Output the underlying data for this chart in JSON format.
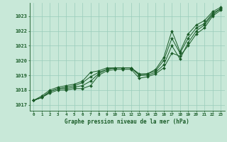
{
  "title": "Graphe pression niveau de la mer (hPa)",
  "xlabel_hours": [
    0,
    1,
    2,
    3,
    4,
    5,
    6,
    7,
    8,
    9,
    10,
    11,
    12,
    13,
    14,
    15,
    16,
    17,
    18,
    19,
    20,
    21,
    22,
    23
  ],
  "yticks": [
    1017,
    1018,
    1019,
    1020,
    1021,
    1022,
    1023
  ],
  "ylim": [
    1016.6,
    1023.9
  ],
  "xlim": [
    -0.5,
    23.5
  ],
  "bg_color": "#c8e8d8",
  "grid_color": "#99ccbb",
  "line_color": "#1a5c28",
  "series": [
    [
      1017.3,
      1017.5,
      1017.8,
      1018.0,
      1018.0,
      1018.1,
      1018.1,
      1018.3,
      1019.0,
      1019.3,
      1019.4,
      1019.4,
      1019.4,
      1018.8,
      1018.9,
      1019.1,
      1019.5,
      1020.5,
      1020.3,
      1021.0,
      1021.8,
      1022.2,
      1023.0,
      1023.4
    ],
    [
      1017.3,
      1017.5,
      1017.9,
      1018.1,
      1018.1,
      1018.2,
      1018.3,
      1018.6,
      1019.1,
      1019.4,
      1019.5,
      1019.5,
      1019.5,
      1019.0,
      1019.0,
      1019.2,
      1019.7,
      1021.0,
      1020.1,
      1021.2,
      1022.0,
      1022.4,
      1023.1,
      1023.5
    ],
    [
      1017.3,
      1017.5,
      1017.9,
      1018.1,
      1018.2,
      1018.3,
      1018.5,
      1018.9,
      1019.2,
      1019.4,
      1019.5,
      1019.5,
      1019.5,
      1019.0,
      1019.1,
      1019.3,
      1020.0,
      1021.5,
      1020.5,
      1021.5,
      1022.2,
      1022.5,
      1023.2,
      1023.5
    ],
    [
      1017.3,
      1017.6,
      1018.0,
      1018.2,
      1018.3,
      1018.4,
      1018.6,
      1019.2,
      1019.3,
      1019.5,
      1019.5,
      1019.5,
      1019.5,
      1019.1,
      1019.1,
      1019.4,
      1020.2,
      1022.0,
      1020.6,
      1021.8,
      1022.4,
      1022.7,
      1023.3,
      1023.6
    ]
  ]
}
